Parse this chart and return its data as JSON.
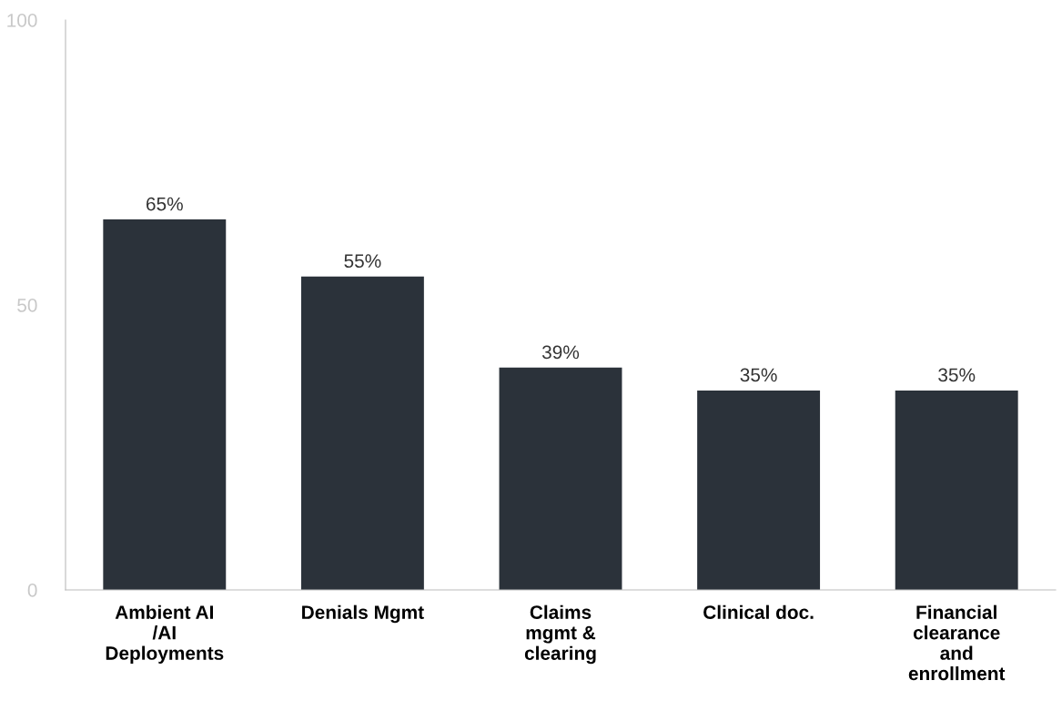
{
  "chart_data": {
    "type": "bar",
    "categories": [
      "Ambient AI\n/AI\nDeployments",
      "Denials Mgmt",
      "Claims\nmgmt &\nclearing",
      "Clinical doc.",
      "Financial\nclearance\nand\nenrollment"
    ],
    "values": [
      65,
      55,
      39,
      35,
      35
    ],
    "value_labels": [
      "65%",
      "55%",
      "39%",
      "35%",
      "35%"
    ],
    "color": "#2b323a",
    "ylim": [
      0,
      100
    ],
    "yticks": [
      0,
      50,
      100
    ],
    "grid": false,
    "legend": false
  }
}
